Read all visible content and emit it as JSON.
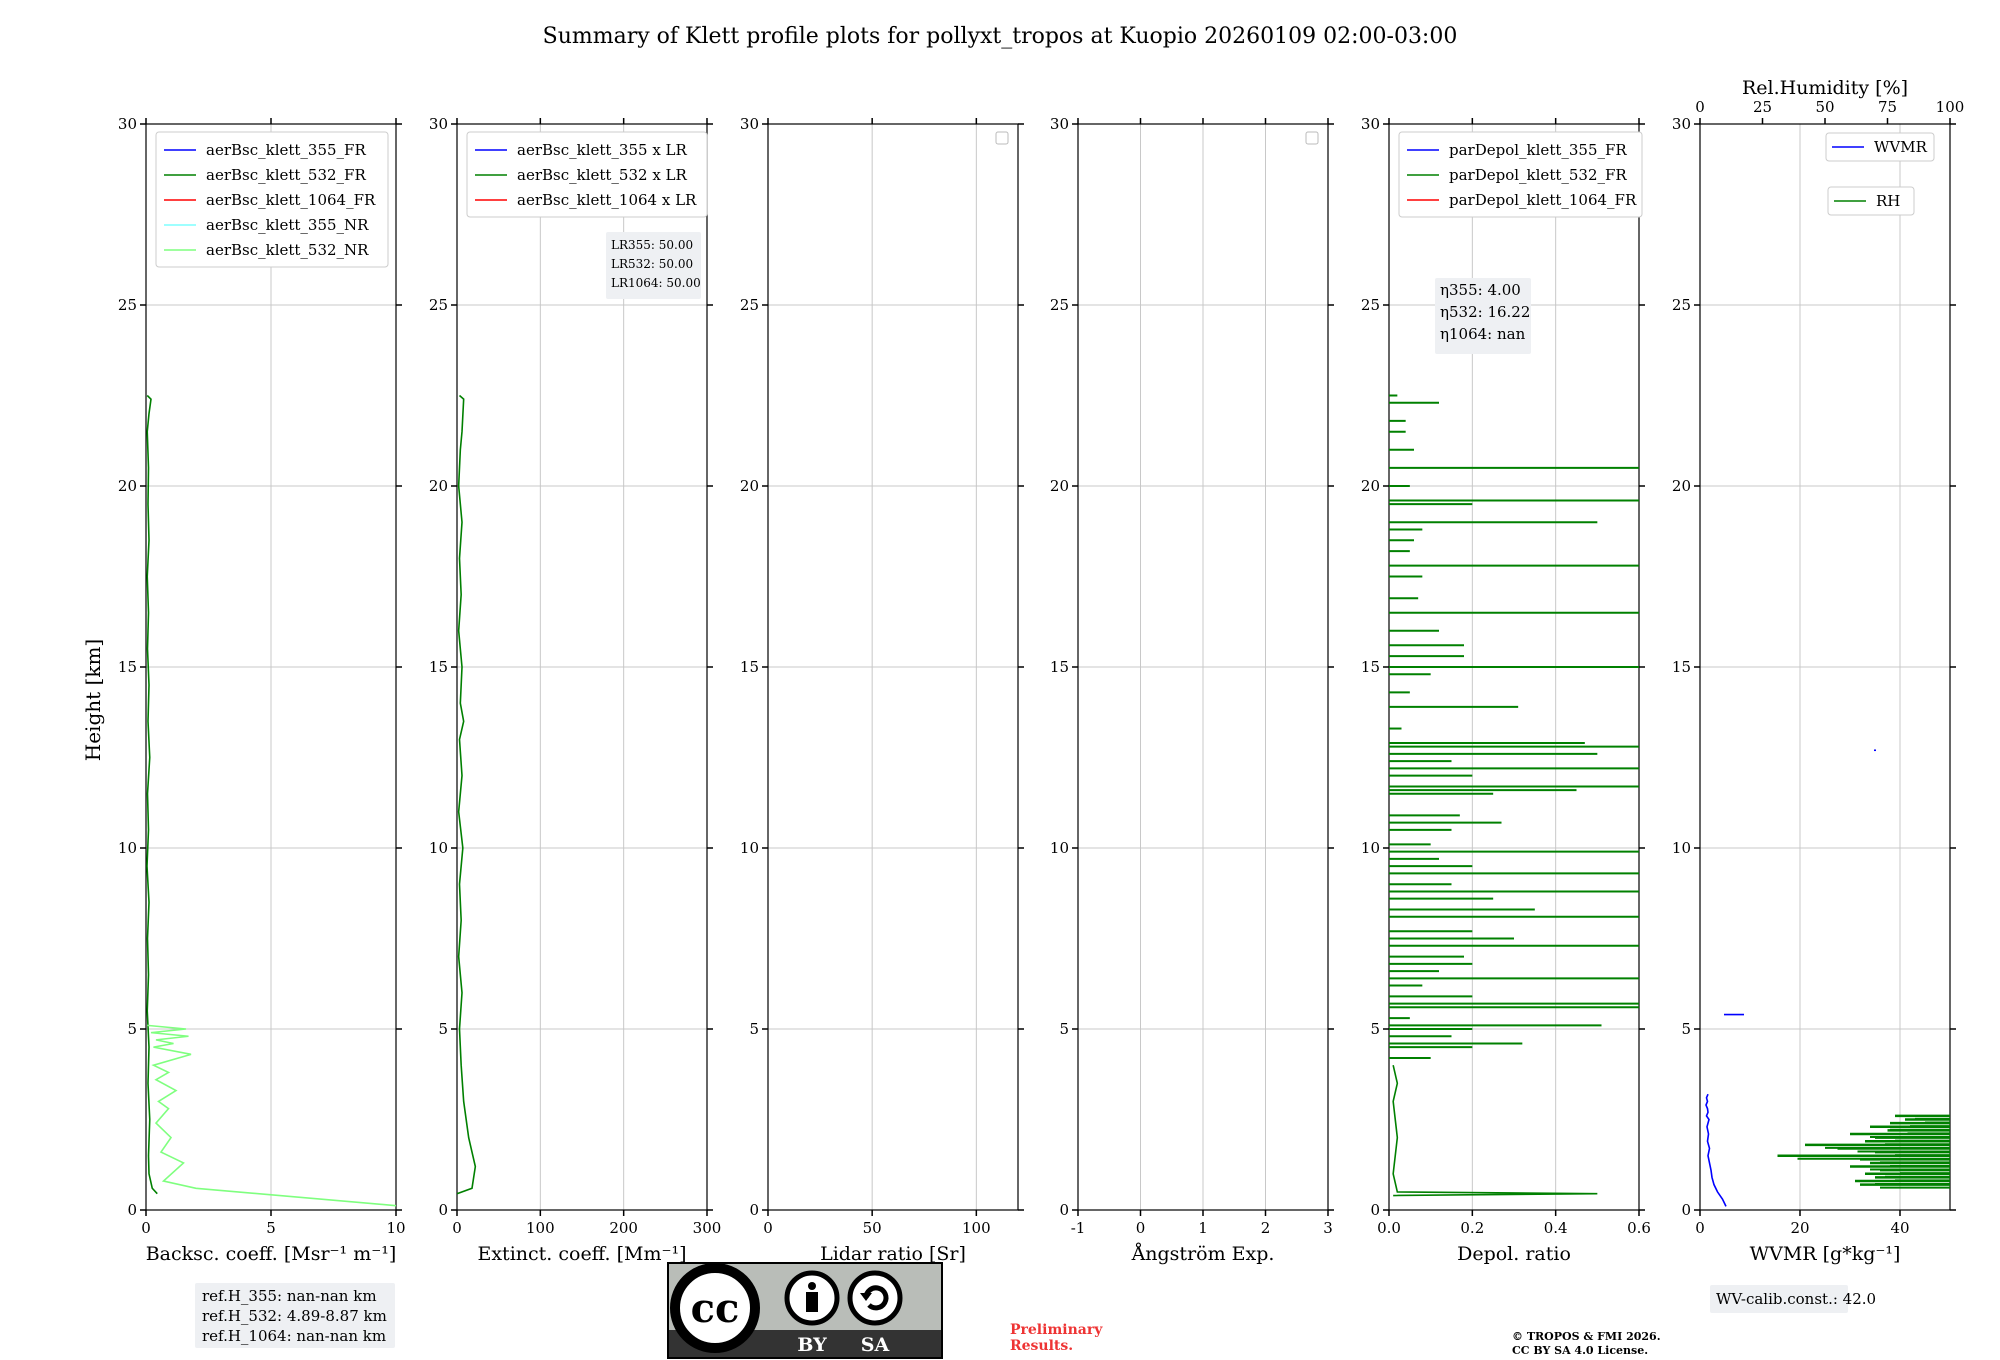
{
  "figure": {
    "title": "Summary of Klett profile plots for pollyxt_tropos at Kuopio 20260109 02:00-03:00",
    "ylabel": "Height [km]",
    "ref_heights": [
      "ref.H_355: nan-nan km",
      "ref.H_532: 4.89-8.87 km",
      "ref.H_1064: nan-nan km"
    ],
    "preliminary": [
      "Preliminary",
      "Results."
    ],
    "copyright": [
      "© TROPOS & FMI 2026.",
      "CC BY SA 4.0 License."
    ],
    "license_badge": {
      "cc": "cc",
      "by": "BY",
      "sa": "SA"
    },
    "wv_calib": "WV-calib.const.: 42.0"
  },
  "chart_data": [
    {
      "type": "line",
      "id": "bsc",
      "xlabel": "Backsc. coeff. [Msr⁻¹ m⁻¹]",
      "xlim": [
        0,
        10
      ],
      "ylim": [
        0,
        30
      ],
      "xticks": [
        0,
        5,
        10
      ],
      "yticks": [
        0,
        5,
        10,
        15,
        20,
        25,
        30
      ],
      "legend": [
        {
          "label": "aerBsc_klett_355_FR",
          "color": "#0000ff"
        },
        {
          "label": "aerBsc_klett_532_FR",
          "color": "#008000"
        },
        {
          "label": "aerBsc_klett_1064_FR",
          "color": "#ff0000"
        },
        {
          "label": "aerBsc_klett_355_NR",
          "color": "#7fffff"
        },
        {
          "label": "aerBsc_klett_532_NR",
          "color": "#7fff7f"
        }
      ],
      "series": [
        {
          "name": "aerBsc_klett_532_FR",
          "color": "#008000",
          "x": [
            0.45,
            0.25,
            0.12,
            0.1,
            0.15,
            0.08,
            0.12,
            0.05,
            0.1,
            0.06,
            0.12,
            0.04,
            0.1,
            0.06,
            0.15,
            0.08,
            0.12,
            0.06,
            0.1,
            0.05,
            0.12,
            0.08,
            0.1,
            0.05,
            0.12,
            0.2,
            0.05
          ],
          "y": [
            0.45,
            0.6,
            1,
            1.5,
            2.5,
            3.5,
            4.5,
            5.5,
            6.5,
            7.5,
            8.5,
            9.5,
            10.5,
            11.5,
            12.5,
            13.5,
            14.5,
            15.5,
            16.5,
            17.5,
            18.5,
            19.5,
            20.5,
            21.5,
            22,
            22.4,
            22.5
          ]
        },
        {
          "name": "aerBsc_klett_532_NR",
          "color": "#7fff7f",
          "x": [
            10,
            2,
            0.7,
            1.5,
            0.6,
            1,
            0.4,
            0.9,
            0.5,
            1.2,
            0.4,
            0.9,
            0.3,
            1.8,
            0.3,
            1.1,
            0.4,
            1.7,
            0.2,
            1.6,
            0.05
          ],
          "y": [
            0.12,
            0.6,
            0.8,
            1.3,
            1.6,
            2.0,
            2.4,
            2.8,
            3.0,
            3.3,
            3.6,
            3.8,
            4.0,
            4.3,
            4.5,
            4.6,
            4.7,
            4.8,
            4.9,
            5.0,
            5.1
          ]
        }
      ]
    },
    {
      "type": "line",
      "id": "ext",
      "xlabel": "Extinct. coeff. [Mm⁻¹]",
      "xlim": [
        0,
        300
      ],
      "ylim": [
        0,
        30
      ],
      "xticks": [
        0,
        100,
        200,
        300
      ],
      "yticks": [
        0,
        5,
        10,
        15,
        20,
        25,
        30
      ],
      "legend": [
        {
          "label": "aerBsc_klett_355 x LR",
          "color": "#0000ff"
        },
        {
          "label": "aerBsc_klett_532 x LR",
          "color": "#008000"
        },
        {
          "label": "aerBsc_klett_1064 x LR",
          "color": "#ff0000"
        }
      ],
      "annotation": [
        "LR355: 50.00",
        "LR532: 50.00",
        "LR1064: 50.00"
      ],
      "series": [
        {
          "name": "aerBsc_klett_532 x LR",
          "color": "#008000",
          "x": [
            0,
            18,
            22,
            14,
            8,
            5,
            3,
            6,
            2,
            5,
            3,
            7,
            2,
            6,
            3,
            8,
            4,
            6,
            2,
            5,
            3,
            6,
            2,
            4,
            6,
            8,
            3
          ],
          "y": [
            0.45,
            0.6,
            1.2,
            2,
            3,
            4,
            5,
            6,
            7,
            8,
            9,
            10,
            11,
            12,
            13,
            13.5,
            14,
            15,
            16,
            17,
            18,
            19,
            20,
            21,
            21.5,
            22.4,
            22.5
          ]
        }
      ]
    },
    {
      "type": "line",
      "id": "lr",
      "xlabel": "Lidar ratio [Sr]",
      "xlim": [
        0,
        120
      ],
      "ylim": [
        0,
        30
      ],
      "xticks": [
        0,
        50,
        100
      ],
      "yticks": [
        0,
        5,
        10,
        15,
        20,
        25,
        30
      ],
      "legend": [],
      "series": []
    },
    {
      "type": "line",
      "id": "ae",
      "xlabel": "Ångström Exp.",
      "xlim": [
        -1,
        3
      ],
      "ylim": [
        0,
        30
      ],
      "xticks": [
        -1,
        0,
        1,
        2,
        3
      ],
      "yticks": [
        0,
        5,
        10,
        15,
        20,
        25,
        30
      ],
      "legend": [],
      "series": []
    },
    {
      "type": "line",
      "id": "depol",
      "xlabel": "Depol. ratio",
      "xlim": [
        0,
        0.6
      ],
      "ylim": [
        0,
        30
      ],
      "xticks": [
        0,
        0.2,
        0.4,
        0.6
      ],
      "xtick_labels": [
        "0.0",
        "0.2",
        "0.4",
        "0.6"
      ],
      "yticks": [
        0,
        5,
        10,
        15,
        20,
        25,
        30
      ],
      "legend": [
        {
          "label": "parDepol_klett_355_FR",
          "color": "#0000ff"
        },
        {
          "label": "parDepol_klett_532_FR",
          "color": "#008000"
        },
        {
          "label": "parDepol_klett_1064_FR",
          "color": "#ff0000"
        }
      ],
      "annotation": [
        "η355: 4.00",
        "η532: 16.22",
        "η1064: nan"
      ],
      "series": [
        {
          "name": "parDepol_klett_532_FR",
          "color": "#008000",
          "base": {
            "x": [
              0.01,
              0.5,
              0.02,
              0.01,
              0.02,
              0.01,
              0.02,
              0.01
            ],
            "y": [
              0.4,
              0.45,
              0.5,
              1.0,
              2.0,
              3.0,
              3.5,
              4.0
            ]
          },
          "spikes": [
            [
              4.2,
              0.1
            ],
            [
              4.5,
              0.2
            ],
            [
              4.6,
              0.32
            ],
            [
              4.8,
              0.15
            ],
            [
              5.0,
              0.2
            ],
            [
              5.1,
              0.51
            ],
            [
              5.3,
              0.05
            ],
            [
              5.6,
              0.6
            ],
            [
              5.7,
              0.6
            ],
            [
              5.9,
              0.2
            ],
            [
              6.2,
              0.08
            ],
            [
              6.4,
              0.6
            ],
            [
              6.6,
              0.12
            ],
            [
              6.8,
              0.2
            ],
            [
              7.0,
              0.18
            ],
            [
              7.3,
              0.6
            ],
            [
              7.5,
              0.3
            ],
            [
              7.7,
              0.2
            ],
            [
              8.1,
              0.6
            ],
            [
              8.3,
              0.35
            ],
            [
              8.6,
              0.25
            ],
            [
              8.8,
              0.6
            ],
            [
              9.0,
              0.15
            ],
            [
              9.3,
              0.6
            ],
            [
              9.5,
              0.2
            ],
            [
              9.7,
              0.12
            ],
            [
              9.9,
              0.6
            ],
            [
              10.1,
              0.1
            ],
            [
              10.5,
              0.15
            ],
            [
              10.7,
              0.27
            ],
            [
              10.9,
              0.17
            ],
            [
              11.5,
              0.25
            ],
            [
              11.6,
              0.45
            ],
            [
              11.7,
              0.6
            ],
            [
              12.0,
              0.2
            ],
            [
              12.2,
              0.6
            ],
            [
              12.4,
              0.15
            ],
            [
              12.6,
              0.5
            ],
            [
              12.8,
              0.6
            ],
            [
              12.9,
              0.47
            ],
            [
              13.3,
              0.03
            ],
            [
              13.9,
              0.31
            ],
            [
              14.3,
              0.05
            ],
            [
              14.8,
              0.1
            ],
            [
              15.0,
              0.6
            ],
            [
              15.3,
              0.18
            ],
            [
              15.6,
              0.18
            ],
            [
              16.0,
              0.12
            ],
            [
              16.5,
              0.6
            ],
            [
              16.9,
              0.07
            ],
            [
              17.5,
              0.08
            ],
            [
              17.8,
              0.6
            ],
            [
              18.2,
              0.05
            ],
            [
              18.5,
              0.06
            ],
            [
              18.8,
              0.08
            ],
            [
              19.0,
              0.5
            ],
            [
              19.5,
              0.2
            ],
            [
              19.6,
              0.6
            ],
            [
              20.0,
              0.05
            ],
            [
              20.5,
              0.6
            ],
            [
              21.0,
              0.06
            ],
            [
              21.5,
              0.04
            ],
            [
              21.8,
              0.04
            ],
            [
              22.3,
              0.12
            ],
            [
              22.5,
              0.02
            ]
          ]
        }
      ]
    },
    {
      "type": "line",
      "id": "wv",
      "xlabel": "WVMR [g*kg⁻¹]",
      "xlim": [
        0,
        50
      ],
      "ylim": [
        0,
        30
      ],
      "xticks": [
        0,
        20,
        40
      ],
      "yticks": [
        0,
        5,
        10,
        15,
        20,
        25,
        30
      ],
      "top_axis": {
        "label": "Rel.Humidity [%]",
        "xlim": [
          0,
          100
        ],
        "xticks": [
          0,
          25,
          50,
          75,
          100
        ]
      },
      "legend": [
        {
          "label": "WVMR",
          "color": "#0000ff"
        },
        {
          "label": "RH",
          "color": "#008000"
        }
      ],
      "series": [
        {
          "name": "WVMR",
          "color": "#0000ff",
          "x": [
            5.2,
            4.5,
            3.5,
            2.8,
            2.4,
            2.2,
            1.9,
            1.6,
            1.9,
            1.5,
            1.7,
            1.4,
            1.8,
            1.3,
            1.6,
            1.5,
            1.2,
            1.5,
            1.3,
            1.6
          ],
          "y": [
            0.1,
            0.3,
            0.5,
            0.7,
            0.9,
            1.1,
            1.3,
            1.5,
            1.7,
            1.9,
            2.1,
            2.3,
            2.5,
            2.6,
            2.7,
            2.8,
            2.9,
            3.0,
            3.1,
            3.2
          ],
          "extra": [
            {
              "x1": 4.8,
              "x2": 8.8,
              "y": 5.4
            },
            {
              "x1": 34.8,
              "x2": 35.2,
              "y": 12.7
            }
          ]
        },
        {
          "name": "RH",
          "color": "#008000",
          "rh_bars": [
            [
              0.7,
              64
            ],
            [
              0.8,
              62
            ],
            [
              0.9,
              70
            ],
            [
              1.0,
              66
            ],
            [
              1.1,
              72
            ],
            [
              1.2,
              60
            ],
            [
              1.3,
              68
            ],
            [
              1.4,
              64
            ],
            [
              1.5,
              31
            ],
            [
              1.6,
              70
            ],
            [
              1.7,
              55
            ],
            [
              1.8,
              42
            ],
            [
              1.9,
              66
            ],
            [
              2.0,
              70
            ],
            [
              2.1,
              60
            ],
            [
              2.2,
              75
            ],
            [
              2.3,
              68
            ],
            [
              2.4,
              76
            ],
            [
              2.5,
              82
            ],
            [
              2.6,
              78
            ]
          ]
        }
      ]
    }
  ]
}
